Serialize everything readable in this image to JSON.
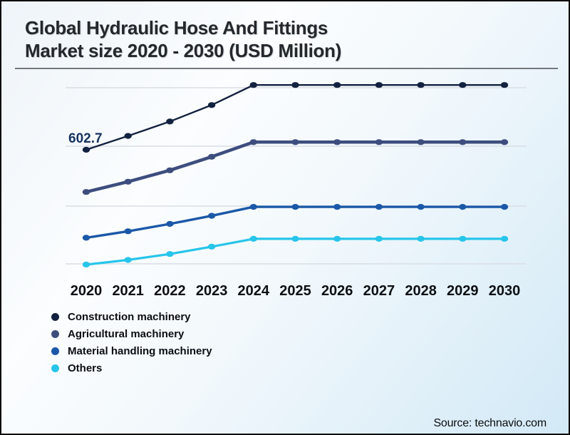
{
  "header": {
    "title_line1": "Global Hydraulic Hose And Fittings",
    "title_line2": "Market size 2020 - 2030 (USD Million)"
  },
  "source": {
    "text": "Source: technavio.com"
  },
  "chart_data": {
    "type": "line",
    "title": "Global Hydraulic Hose And Fittings Market size 2020 - 2030 (USD Million)",
    "xlabel": "",
    "ylabel": "USD Million",
    "categories": [
      "2020",
      "2021",
      "2022",
      "2023",
      "2024",
      "2025",
      "2026",
      "2027",
      "2028",
      "2029",
      "2030"
    ],
    "series": [
      {
        "name": "Construction machinery",
        "color": "#132140",
        "values": [
          602.7,
          654,
          707,
          768,
          842,
          842,
          842,
          842,
          842,
          842,
          842
        ]
      },
      {
        "name": "Agricultural machinery",
        "color": "#3D4D7E",
        "values": [
          447,
          485,
          527,
          577,
          631,
          631,
          631,
          631,
          631,
          631,
          631
        ]
      },
      {
        "name": "Material handling machinery",
        "color": "#1B58A8",
        "values": [
          278,
          302,
          329,
          359,
          392,
          392,
          392,
          392,
          392,
          392,
          392
        ]
      },
      {
        "name": "Others",
        "color": "#27C5EA",
        "values": [
          179,
          196,
          218,
          245,
          274,
          274,
          274,
          274,
          274,
          274,
          274
        ]
      }
    ],
    "ylim": [
      150,
      874
    ],
    "grid": "horizontal-only",
    "legend_position": "bottom-left",
    "annotations": [
      {
        "series": "Construction machinery",
        "x": "2020",
        "label": "602.7"
      }
    ]
  }
}
